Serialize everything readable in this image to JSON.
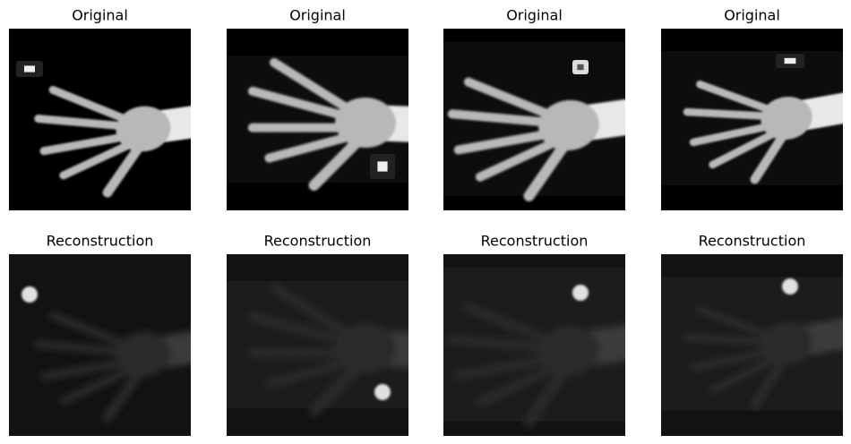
{
  "panels": [
    {
      "title": "Original"
    },
    {
      "title": "Original"
    },
    {
      "title": "Original"
    },
    {
      "title": "Original"
    },
    {
      "title": "Reconstruction"
    },
    {
      "title": "Reconstruction"
    },
    {
      "title": "Reconstruction"
    },
    {
      "title": "Reconstruction"
    }
  ]
}
